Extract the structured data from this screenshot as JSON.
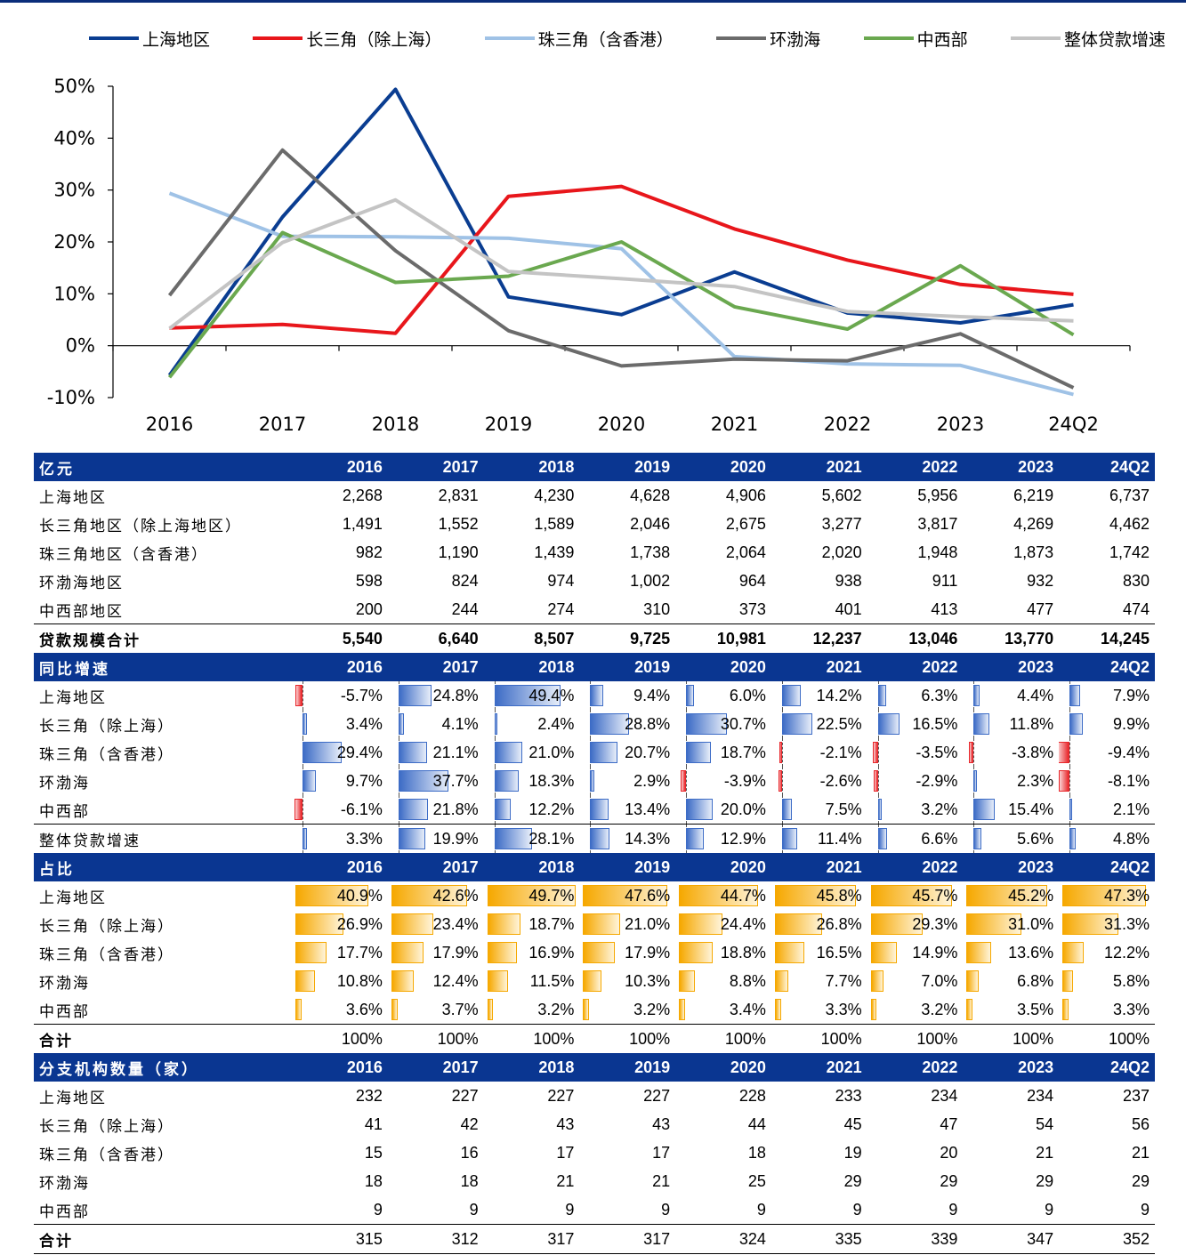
{
  "chart_data": {
    "type": "line",
    "categories": [
      "2016",
      "2017",
      "2018",
      "2019",
      "2020",
      "2021",
      "2022",
      "2023",
      "24Q2"
    ],
    "yticks": [
      "50%",
      "40%",
      "30%",
      "20%",
      "10%",
      "0%",
      "-10%"
    ],
    "ylim": [
      -10,
      50
    ],
    "series": [
      {
        "name": "上海地区",
        "color": "#0a3d91",
        "values": [
          -5.7,
          24.8,
          49.4,
          9.4,
          6.0,
          14.2,
          6.3,
          4.4,
          7.9
        ]
      },
      {
        "name": "长三角（除上海）",
        "color": "#e8161b",
        "values": [
          3.4,
          4.1,
          2.4,
          28.8,
          30.7,
          22.5,
          16.5,
          11.8,
          9.9
        ]
      },
      {
        "name": "珠三角（含香港）",
        "color": "#9fc2e6",
        "values": [
          29.4,
          21.1,
          21.0,
          20.7,
          18.7,
          -2.1,
          -3.5,
          -3.8,
          -9.4
        ]
      },
      {
        "name": "环渤海",
        "color": "#6b6b6b",
        "values": [
          9.7,
          37.7,
          18.3,
          2.9,
          -3.9,
          -2.6,
          -2.9,
          2.3,
          -8.1
        ]
      },
      {
        "name": "中西部",
        "color": "#6aa84f",
        "values": [
          -6.1,
          21.8,
          12.2,
          13.4,
          20.0,
          7.5,
          3.2,
          15.4,
          2.1
        ]
      },
      {
        "name": "整体贷款增速",
        "color": "#c4c4c4",
        "values": [
          3.3,
          19.9,
          28.1,
          14.3,
          12.9,
          11.4,
          6.6,
          5.6,
          4.8
        ]
      }
    ]
  },
  "tables": {
    "loan_size": {
      "header": [
        "亿元",
        "2016",
        "2017",
        "2018",
        "2019",
        "2020",
        "2021",
        "2022",
        "2023",
        "24Q2"
      ],
      "rows": [
        {
          "label": "上海地区",
          "values": [
            "2,268",
            "2,831",
            "4,230",
            "4,628",
            "4,906",
            "5,602",
            "5,956",
            "6,219",
            "6,737"
          ]
        },
        {
          "label": "长三角地区（除上海地区）",
          "values": [
            "1,491",
            "1,552",
            "1,589",
            "2,046",
            "2,675",
            "3,277",
            "3,817",
            "4,269",
            "4,462"
          ]
        },
        {
          "label": "珠三角地区（含香港）",
          "values": [
            "982",
            "1,190",
            "1,439",
            "1,738",
            "2,064",
            "2,020",
            "1,948",
            "1,873",
            "1,742"
          ]
        },
        {
          "label": "环渤海地区",
          "values": [
            "598",
            "824",
            "974",
            "1,002",
            "964",
            "938",
            "911",
            "932",
            "830"
          ]
        },
        {
          "label": "中西部地区",
          "values": [
            "200",
            "244",
            "274",
            "310",
            "373",
            "401",
            "413",
            "477",
            "474"
          ]
        }
      ],
      "total": {
        "label": "贷款规模合计",
        "values": [
          "5,540",
          "6,640",
          "8,507",
          "9,725",
          "10,981",
          "12,237",
          "13,046",
          "13,770",
          "14,245"
        ]
      }
    },
    "growth": {
      "header": [
        "同比增速",
        "2016",
        "2017",
        "2018",
        "2019",
        "2020",
        "2021",
        "2022",
        "2023",
        "24Q2"
      ],
      "rows": [
        {
          "label": "上海地区",
          "values": [
            -5.7,
            24.8,
            49.4,
            9.4,
            6.0,
            14.2,
            6.3,
            4.4,
            7.9
          ]
        },
        {
          "label": "长三角（除上海）",
          "values": [
            3.4,
            4.1,
            2.4,
            28.8,
            30.7,
            22.5,
            16.5,
            11.8,
            9.9
          ]
        },
        {
          "label": "珠三角（含香港）",
          "values": [
            29.4,
            21.1,
            21.0,
            20.7,
            18.7,
            -2.1,
            -3.5,
            -3.8,
            -9.4
          ]
        },
        {
          "label": "环渤海",
          "values": [
            9.7,
            37.7,
            18.3,
            2.9,
            -3.9,
            -2.6,
            -2.9,
            2.3,
            -8.1
          ]
        },
        {
          "label": "中西部",
          "values": [
            -6.1,
            21.8,
            12.2,
            13.4,
            20.0,
            7.5,
            3.2,
            15.4,
            2.1
          ]
        }
      ],
      "total": {
        "label": "整体贷款增速",
        "values": [
          3.3,
          19.9,
          28.1,
          14.3,
          12.9,
          11.4,
          6.6,
          5.6,
          4.8
        ]
      }
    },
    "share": {
      "header": [
        "占比",
        "2016",
        "2017",
        "2018",
        "2019",
        "2020",
        "2021",
        "2022",
        "2023",
        "24Q2"
      ],
      "rows": [
        {
          "label": "上海地区",
          "values": [
            40.9,
            42.6,
            49.7,
            47.6,
            44.7,
            45.8,
            45.7,
            45.2,
            47.3
          ]
        },
        {
          "label": "长三角（除上海）",
          "values": [
            26.9,
            23.4,
            18.7,
            21.0,
            24.4,
            26.8,
            29.3,
            31.0,
            31.3
          ]
        },
        {
          "label": "珠三角（含香港）",
          "values": [
            17.7,
            17.9,
            16.9,
            17.9,
            18.8,
            16.5,
            14.9,
            13.6,
            12.2
          ]
        },
        {
          "label": "环渤海",
          "values": [
            10.8,
            12.4,
            11.5,
            10.3,
            8.8,
            7.7,
            7.0,
            6.8,
            5.8
          ]
        },
        {
          "label": "中西部",
          "values": [
            3.6,
            3.7,
            3.2,
            3.2,
            3.4,
            3.3,
            3.2,
            3.5,
            3.3
          ]
        }
      ],
      "total": {
        "label": "合计",
        "values": [
          "100%",
          "100%",
          "100%",
          "100%",
          "100%",
          "100%",
          "100%",
          "100%",
          "100%"
        ]
      }
    },
    "branches": {
      "header": [
        "分支机构数量（家）",
        "2016",
        "2017",
        "2018",
        "2019",
        "2020",
        "2021",
        "2022",
        "2023",
        "24Q2"
      ],
      "rows": [
        {
          "label": "上海地区",
          "values": [
            "232",
            "227",
            "227",
            "227",
            "228",
            "233",
            "234",
            "234",
            "237"
          ]
        },
        {
          "label": "长三角（除上海）",
          "values": [
            "41",
            "42",
            "43",
            "43",
            "44",
            "45",
            "47",
            "54",
            "56"
          ]
        },
        {
          "label": "珠三角（含香港）",
          "values": [
            "15",
            "16",
            "17",
            "17",
            "18",
            "19",
            "20",
            "21",
            "21"
          ]
        },
        {
          "label": "环渤海",
          "values": [
            "18",
            "18",
            "21",
            "21",
            "25",
            "29",
            "29",
            "29",
            "29"
          ]
        },
        {
          "label": "中西部",
          "values": [
            "9",
            "9",
            "9",
            "9",
            "9",
            "9",
            "9",
            "9",
            "9"
          ]
        }
      ],
      "total": {
        "label": "合计",
        "values": [
          "315",
          "312",
          "317",
          "317",
          "324",
          "335",
          "339",
          "347",
          "352"
        ]
      }
    }
  }
}
